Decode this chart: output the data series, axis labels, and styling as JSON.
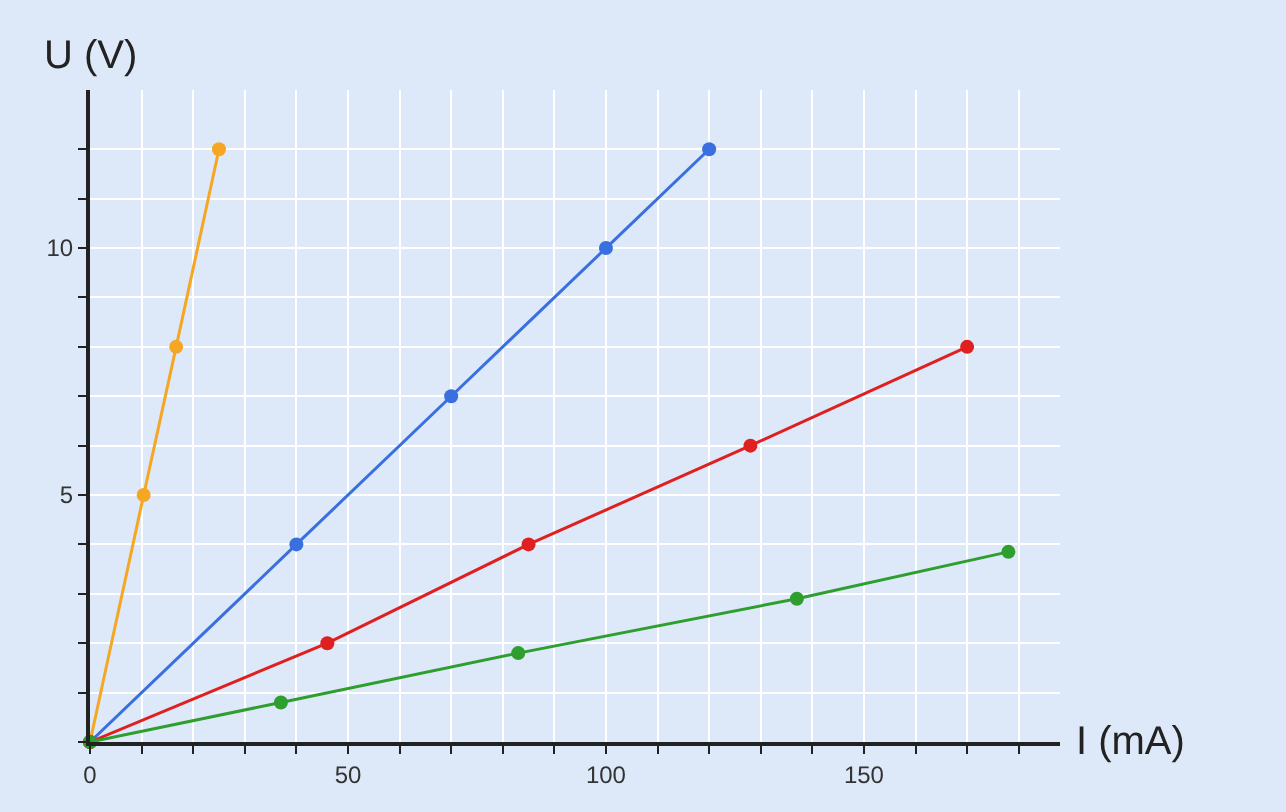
{
  "chart_data": {
    "type": "line",
    "xlabel": "I (mA)",
    "ylabel": "U (V)",
    "series": [
      {
        "color": "#f5a623",
        "x": [
          0,
          10.4,
          16.7,
          25
        ],
        "values": [
          0,
          5,
          8,
          12
        ]
      },
      {
        "color": "#3a6fe0",
        "x": [
          0,
          40,
          70,
          100,
          120
        ],
        "values": [
          0,
          4,
          7,
          10,
          12
        ]
      },
      {
        "color": "#e02020",
        "x": [
          0,
          46,
          85,
          128,
          170
        ],
        "values": [
          0,
          2,
          4,
          6,
          8
        ]
      },
      {
        "color": "#2e9e2e",
        "x": [
          0,
          37,
          83,
          137,
          178
        ],
        "values": [
          0,
          0.8,
          1.8,
          2.9,
          3.85
        ]
      }
    ],
    "xlim": [
      0,
      188
    ],
    "ylim": [
      0,
      13.2
    ],
    "xticks": [
      0,
      {
        "value": 10,
        "label": null
      },
      {
        "value": 20,
        "label": null
      },
      {
        "value": 30,
        "label": null
      },
      {
        "value": 40,
        "label": null
      },
      50,
      {
        "value": 60,
        "label": null
      },
      {
        "value": 70,
        "label": null
      },
      {
        "value": 80,
        "label": null
      },
      {
        "value": 90,
        "label": null
      },
      100,
      {
        "value": 110,
        "label": null
      },
      {
        "value": 120,
        "label": null
      },
      {
        "value": 130,
        "label": null
      },
      {
        "value": 140,
        "label": null
      },
      150,
      {
        "value": 160,
        "label": null
      },
      {
        "value": 170,
        "label": null
      },
      {
        "value": 180,
        "label": null
      }
    ],
    "yticks": [
      {
        "value": 0,
        "label": null
      },
      {
        "value": 1,
        "label": null
      },
      {
        "value": 2,
        "label": null
      },
      {
        "value": 3,
        "label": null
      },
      {
        "value": 4,
        "label": null
      },
      5,
      {
        "value": 6,
        "label": null
      },
      {
        "value": 7,
        "label": null
      },
      {
        "value": 8,
        "label": null
      },
      {
        "value": 9,
        "label": null
      },
      10,
      {
        "value": 11,
        "label": null
      },
      {
        "value": 12,
        "label": null
      }
    ],
    "grid": true,
    "marker": "circle",
    "line_style": "solid"
  }
}
